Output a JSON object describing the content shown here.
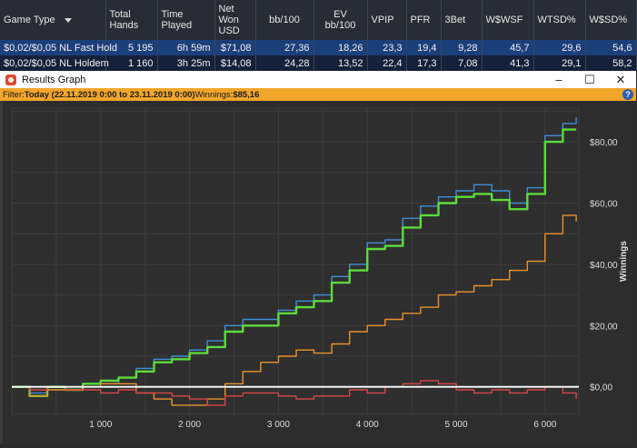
{
  "stats_table": {
    "headers": [
      "Game Type",
      "Total Hands",
      "Time Played",
      "Net Won USD",
      "bb/100",
      "EV bb/100",
      "VPIP",
      "PFR",
      "3Bet",
      "W$WSF",
      "WTSD%",
      "W$SD%"
    ],
    "rows": [
      [
        "$0,02/$0,05 NL Fast Hold",
        "5 195",
        "6h 59m",
        "$71,08",
        "27,36",
        "18,26",
        "23,3",
        "19,4",
        "9,28",
        "45,7",
        "29,6",
        "54,6"
      ],
      [
        "$0,02/$0,05 NL Holdem",
        "1 160",
        "3h 25m",
        "$14,08",
        "24,28",
        "13,52",
        "22,4",
        "17,3",
        "7,08",
        "41,3",
        "29,1",
        "58,2"
      ]
    ]
  },
  "window": {
    "title": "Results Graph",
    "minimize": "–",
    "maximize": "☐",
    "close": "✕"
  },
  "filter": {
    "prefix": "Filter: ",
    "range": "Today (22.11.2019 0:00 to 23.11.2019 0:00)",
    "winnings_label": " Winnings: ",
    "winnings_value": "$85,16",
    "help": "?"
  },
  "chart_data": {
    "type": "line",
    "ylabel": "Winnings",
    "xlabel": "",
    "xlim": [
      0,
      6380
    ],
    "ylim": [
      -9,
      91
    ],
    "x_ticks": [
      1000,
      2000,
      3000,
      4000,
      5000,
      6000
    ],
    "x_tick_labels": [
      "1 000",
      "2 000",
      "3 000",
      "4 000",
      "5 000",
      "6 000"
    ],
    "y_ticks": [
      0,
      20,
      40,
      60,
      80
    ],
    "y_tick_labels": [
      "$0,00",
      "$20,00",
      "$40,00",
      "$60,00",
      "$80,00"
    ],
    "grid": true,
    "zero_line_color": "#ffffff",
    "series": [
      {
        "color": "#3f8fd8",
        "x": [
          0,
          200,
          400,
          600,
          800,
          1000,
          1200,
          1400,
          1600,
          1800,
          2000,
          2200,
          2400,
          2600,
          2800,
          3000,
          3200,
          3400,
          3600,
          3800,
          4000,
          4200,
          4400,
          4600,
          4800,
          5000,
          5200,
          5400,
          5600,
          5800,
          6000,
          6200,
          6350
        ],
        "values": [
          0,
          -2,
          0,
          -1,
          0,
          1,
          3,
          6,
          9,
          10,
          12,
          15,
          20,
          22,
          22,
          25,
          28,
          30,
          36,
          40,
          47,
          48,
          55,
          59,
          62,
          64,
          66,
          64,
          60,
          65,
          82,
          86,
          88
        ]
      },
      {
        "color": "#5ddc3a",
        "x": [
          0,
          200,
          400,
          600,
          800,
          1000,
          1200,
          1400,
          1600,
          1800,
          2000,
          2200,
          2400,
          2600,
          2800,
          3000,
          3200,
          3400,
          3600,
          3800,
          4000,
          4200,
          4400,
          4600,
          4800,
          5000,
          5200,
          5400,
          5600,
          5800,
          6000,
          6200,
          6350
        ],
        "values": [
          0,
          -3,
          0,
          -1,
          1,
          2,
          3,
          5,
          8,
          9,
          11,
          13,
          18,
          20,
          20,
          24,
          26,
          28,
          34,
          38,
          45,
          46,
          52,
          56,
          60,
          62,
          63,
          61,
          58,
          63,
          80,
          84,
          84
        ]
      },
      {
        "color": "#e8922c",
        "x": [
          0,
          200,
          400,
          600,
          800,
          1000,
          1200,
          1400,
          1600,
          1800,
          2000,
          2200,
          2400,
          2600,
          2800,
          3000,
          3200,
          3400,
          3600,
          3800,
          4000,
          4200,
          4400,
          4600,
          4800,
          5000,
          5200,
          5400,
          5600,
          5800,
          6000,
          6200,
          6350
        ],
        "values": [
          0,
          -3,
          -1,
          -1,
          0,
          1,
          1,
          -2,
          -4,
          -6,
          -6,
          -4,
          1,
          5,
          8,
          10,
          12,
          11,
          14,
          18,
          20,
          22,
          24,
          26,
          30,
          31,
          33,
          35,
          38,
          41,
          50,
          56,
          54
        ]
      },
      {
        "color": "#d94545",
        "x": [
          0,
          200,
          400,
          600,
          800,
          1000,
          1200,
          1400,
          1600,
          1800,
          2000,
          2200,
          2400,
          2600,
          2800,
          3000,
          3200,
          3400,
          3600,
          3800,
          4000,
          4200,
          4400,
          4600,
          4800,
          5000,
          5200,
          5400,
          5600,
          5800,
          6000,
          6200,
          6350
        ],
        "values": [
          0,
          -1,
          0,
          -1,
          -1,
          -2,
          -1,
          -2,
          -2,
          -3,
          -4,
          -6,
          -3,
          -2,
          -2,
          -3,
          -4,
          -3,
          -3,
          -1,
          -2,
          0,
          1,
          2,
          1,
          -1,
          -2,
          -1,
          -2,
          -1,
          0,
          -2,
          -4
        ]
      }
    ]
  }
}
